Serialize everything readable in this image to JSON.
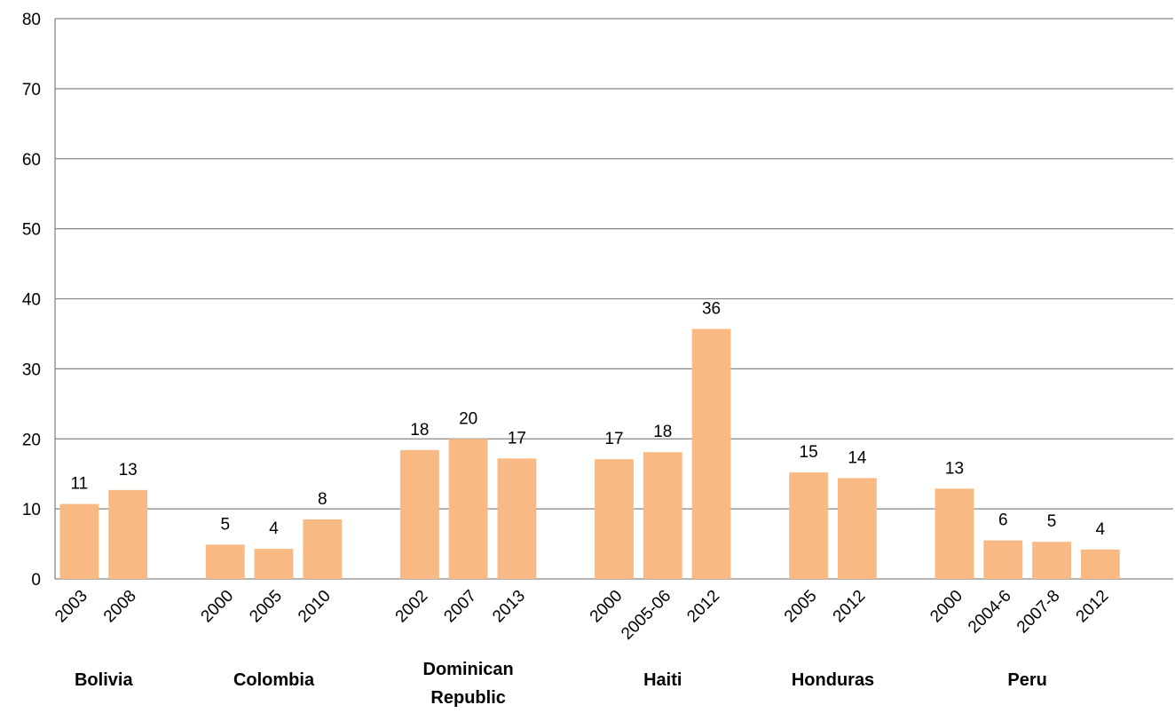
{
  "chart_data": {
    "type": "bar",
    "title": "",
    "xlabel": "",
    "ylabel": "",
    "ylim": [
      0,
      80
    ],
    "yticks": [
      0,
      10,
      20,
      30,
      40,
      50,
      60,
      70,
      80
    ],
    "grid": true,
    "bar_color": "#F8B984",
    "groups": [
      {
        "label": "Bolivia",
        "bars": [
          {
            "year": "2003",
            "value": 10.7,
            "label": "11"
          },
          {
            "year": "2008",
            "value": 12.7,
            "label": "13"
          }
        ]
      },
      {
        "label": "Colombia",
        "bars": [
          {
            "year": "2000",
            "value": 4.9,
            "label": "5"
          },
          {
            "year": "2005",
            "value": 4.3,
            "label": "4"
          },
          {
            "year": "2010",
            "value": 8.5,
            "label": "8"
          }
        ]
      },
      {
        "label": "Dominican Republic",
        "bars": [
          {
            "year": "2002",
            "value": 18.4,
            "label": "18"
          },
          {
            "year": "2007",
            "value": 20.0,
            "label": "20"
          },
          {
            "year": "2013",
            "value": 17.2,
            "label": "17"
          }
        ]
      },
      {
        "label": "Haiti",
        "bars": [
          {
            "year": "2000",
            "value": 17.1,
            "label": "17"
          },
          {
            "year": "2005-06",
            "value": 18.1,
            "label": "18"
          },
          {
            "year": "2012",
            "value": 35.7,
            "label": "36"
          }
        ]
      },
      {
        "label": "Honduras",
        "bars": [
          {
            "year": "2005",
            "value": 15.2,
            "label": "15"
          },
          {
            "year": "2012",
            "value": 14.4,
            "label": "14"
          }
        ]
      },
      {
        "label": "Peru",
        "bars": [
          {
            "year": "2000",
            "value": 12.9,
            "label": "13"
          },
          {
            "year": "2004-6",
            "value": 5.5,
            "label": "6"
          },
          {
            "year": "2007-8",
            "value": 5.3,
            "label": "5"
          },
          {
            "year": "2012",
            "value": 4.2,
            "label": "4"
          }
        ]
      }
    ]
  }
}
